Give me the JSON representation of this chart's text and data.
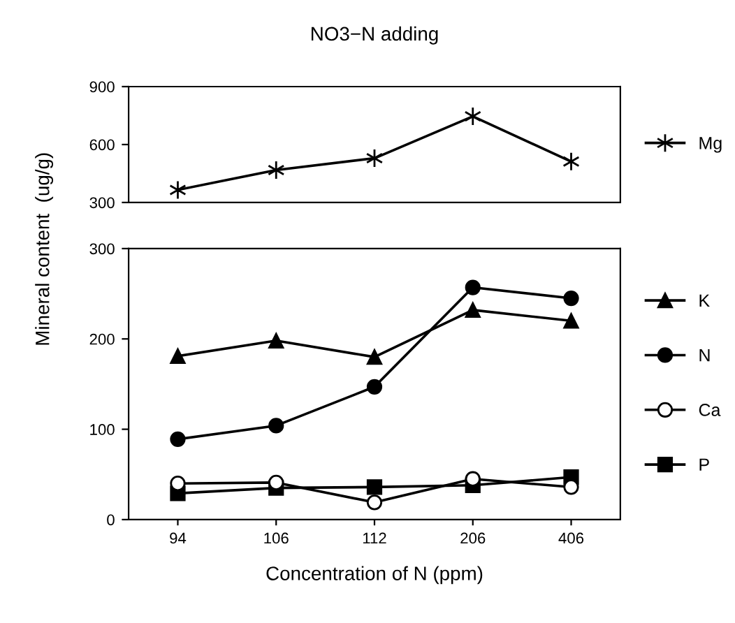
{
  "chart_data": [
    {
      "type": "line",
      "title": "NO3−N adding",
      "categories": [
        "94",
        "106",
        "112",
        "206",
        "406"
      ],
      "ylim": [
        300,
        900
      ],
      "yticks": [
        300,
        600,
        900
      ],
      "tick_labels": "y",
      "legend": "right",
      "grid": false,
      "series": [
        {
          "name": "Mg",
          "color": "#000000",
          "marker": "cross",
          "values": [
            365,
            468,
            529,
            746,
            512
          ]
        }
      ]
    },
    {
      "type": "line",
      "xlabel": "Concentration of N (ppm)",
      "ylabel": "Mineral content  (ug/g)",
      "categories": [
        "94",
        "106",
        "112",
        "206",
        "406"
      ],
      "ylim": [
        0,
        300
      ],
      "yticks": [
        0,
        100,
        200,
        300
      ],
      "legend": "right",
      "grid": false,
      "series": [
        {
          "name": "K",
          "color": "#000000",
          "marker": "triangle",
          "values": [
            181,
            198,
            180,
            232,
            220
          ]
        },
        {
          "name": "N",
          "color": "#000000",
          "marker": "circle",
          "values": [
            89,
            104,
            147,
            257,
            245
          ]
        },
        {
          "name": "Ca",
          "color": "#000000",
          "marker": "circle",
          "values": [
            40,
            41,
            19,
            45,
            36
          ]
        },
        {
          "name": "P",
          "color": "#000000",
          "marker": "square",
          "values": [
            29,
            35,
            36,
            38,
            47
          ]
        }
      ]
    }
  ]
}
